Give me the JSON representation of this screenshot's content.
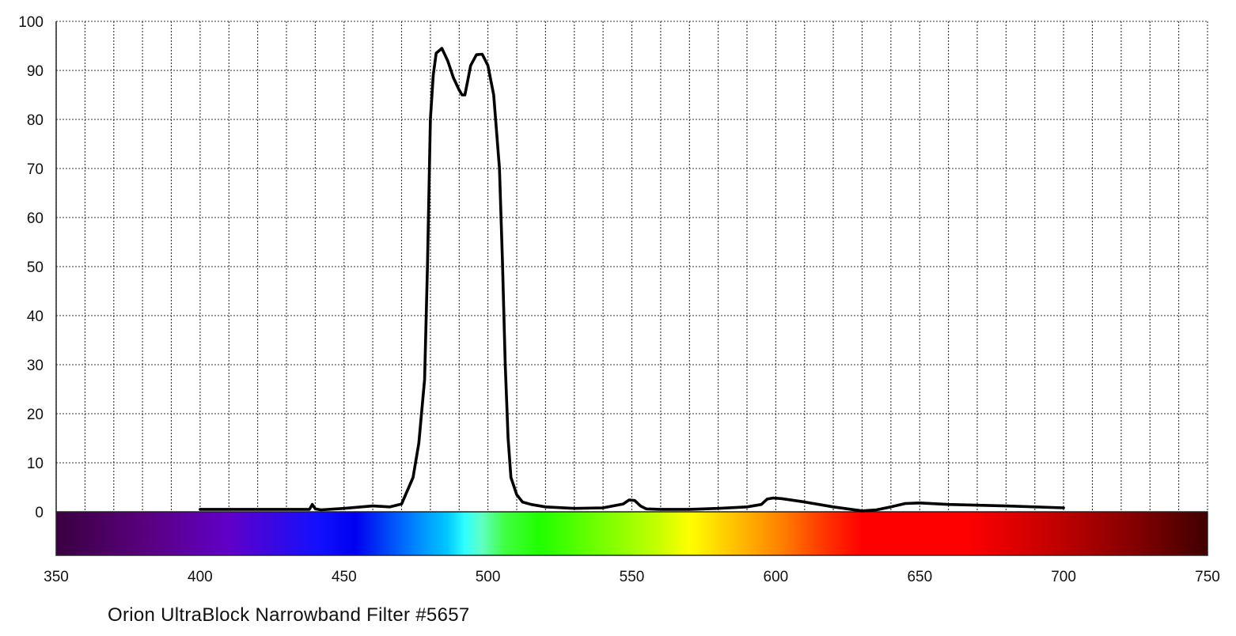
{
  "chart_data": {
    "type": "line",
    "caption": "Orion UltraBlock Narrowband Filter #5657",
    "xlabel": "",
    "ylabel": "",
    "xlim": [
      350,
      750
    ],
    "ylim": [
      0,
      100
    ],
    "x_ticks": [
      350,
      400,
      450,
      500,
      550,
      600,
      650,
      700,
      750
    ],
    "y_ticks": [
      0,
      10,
      20,
      30,
      40,
      50,
      60,
      70,
      80,
      90,
      100
    ],
    "grid": true,
    "legend": "none",
    "spectrum_bar": true,
    "line_color": "#000000",
    "series": [
      {
        "x": [
          400,
          420,
          438,
          439,
          440,
          442,
          450,
          460,
          466,
          470,
          474,
          476,
          478,
          479,
          480,
          481,
          482,
          484,
          486,
          488,
          490,
          491,
          492,
          493,
          494,
          496,
          498,
          500,
          502,
          504,
          505,
          506,
          507,
          508,
          510,
          512,
          515,
          520,
          530,
          540,
          547,
          549,
          551,
          553,
          555,
          560,
          570,
          580,
          590,
          595,
          597,
          599,
          602,
          610,
          620,
          630,
          635,
          640,
          645,
          650,
          660,
          680,
          700
        ],
        "y": [
          0.5,
          0.5,
          0.5,
          1.5,
          0.6,
          0.4,
          0.7,
          1.2,
          1.0,
          1.6,
          7.0,
          14.0,
          27.0,
          50.0,
          80.0,
          89.0,
          93.5,
          94.5,
          92.0,
          88.5,
          86.0,
          85.0,
          85.0,
          88.0,
          91.0,
          93.2,
          93.3,
          91.0,
          85.0,
          70.0,
          52.0,
          30.0,
          15.0,
          7.0,
          3.5,
          2.0,
          1.5,
          1.0,
          0.7,
          0.8,
          1.6,
          2.4,
          2.3,
          1.2,
          0.6,
          0.5,
          0.5,
          0.7,
          1.0,
          1.5,
          2.6,
          2.8,
          2.7,
          2.0,
          1.0,
          0.2,
          0.4,
          1.0,
          1.7,
          1.8,
          1.5,
          1.2,
          0.8
        ]
      }
    ]
  }
}
